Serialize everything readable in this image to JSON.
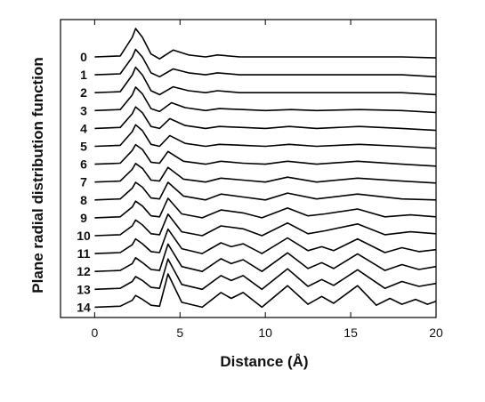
{
  "chart_data": {
    "type": "line",
    "title": "",
    "xlabel": "Distance (Å)",
    "ylabel": "Plane radial distribution function",
    "xlim": [
      -2,
      20
    ],
    "xticks": [
      0,
      5,
      10,
      15,
      20
    ],
    "grid": false,
    "legend": "none",
    "curve_labels": [
      "0",
      "1",
      "2",
      "3",
      "4",
      "5",
      "6",
      "7",
      "8",
      "9",
      "10",
      "11",
      "12",
      "13",
      "14"
    ],
    "line_color": "#000000",
    "series": [
      {
        "label": "0",
        "x": [
          0,
          1.5,
          2.2,
          2.4,
          2.8,
          3.3,
          3.8,
          4.6,
          5.5,
          6.5,
          7.2,
          8.5,
          10,
          12,
          15,
          18,
          20
        ],
        "y": [
          0,
          0.05,
          1.0,
          1.45,
          1.0,
          0.15,
          -0.1,
          0.35,
          0.1,
          0.0,
          0.1,
          0.0,
          0.0,
          0.0,
          0.0,
          0.0,
          -0.05
        ]
      },
      {
        "label": "1",
        "x": [
          0,
          1.5,
          2.2,
          2.4,
          2.8,
          3.3,
          3.8,
          4.6,
          5.5,
          6.5,
          7.2,
          8.5,
          10,
          12,
          15,
          18,
          20
        ],
        "y": [
          0,
          0.05,
          0.9,
          1.3,
          0.9,
          0.1,
          -0.1,
          0.3,
          0.1,
          0.0,
          0.1,
          0.0,
          0.0,
          0.0,
          0.0,
          0.0,
          -0.1
        ]
      },
      {
        "label": "2",
        "x": [
          0,
          1.5,
          2.2,
          2.4,
          2.8,
          3.3,
          3.8,
          4.6,
          5.5,
          6.5,
          7.2,
          8.5,
          10,
          12,
          15,
          18,
          20
        ],
        "y": [
          0,
          0.05,
          0.9,
          1.3,
          0.9,
          0.1,
          -0.1,
          0.3,
          0.1,
          0.0,
          0.1,
          0.0,
          0.0,
          0.0,
          0.0,
          0.0,
          -0.1
        ]
      },
      {
        "label": "3",
        "x": [
          0,
          1.5,
          2.2,
          2.4,
          2.8,
          3.3,
          3.8,
          4.5,
          5.3,
          6.5,
          7.3,
          8.7,
          10,
          11.5,
          13,
          15.5,
          18,
          20
        ],
        "y": [
          0,
          0.05,
          0.8,
          1.2,
          0.85,
          0.1,
          -0.05,
          0.4,
          0.15,
          0.0,
          0.1,
          0.05,
          0.0,
          0.05,
          0.0,
          0.05,
          0.0,
          -0.1
        ]
      },
      {
        "label": "4",
        "x": [
          0,
          1.5,
          2.2,
          2.4,
          2.8,
          3.3,
          3.8,
          4.4,
          5.3,
          6.5,
          7.3,
          8.7,
          10,
          11.4,
          13,
          15.5,
          18,
          20
        ],
        "y": [
          0,
          0.05,
          0.75,
          1.1,
          0.8,
          0.1,
          0.0,
          0.5,
          0.15,
          0.0,
          0.1,
          0.05,
          0.0,
          0.1,
          0.0,
          0.1,
          0.0,
          -0.1
        ]
      },
      {
        "label": "5",
        "x": [
          0,
          1.5,
          2.2,
          2.4,
          2.8,
          3.3,
          3.8,
          4.4,
          5.3,
          6.5,
          7.3,
          8.7,
          10,
          11.4,
          13,
          15.5,
          18,
          20
        ],
        "y": [
          0,
          0.05,
          0.75,
          1.1,
          0.8,
          0.1,
          0.0,
          0.55,
          0.15,
          0.0,
          0.1,
          0.05,
          0.0,
          0.1,
          0.0,
          0.1,
          0.0,
          -0.1
        ]
      },
      {
        "label": "6",
        "x": [
          0,
          1.5,
          2.2,
          2.4,
          2.8,
          3.3,
          3.8,
          4.3,
          5.2,
          6.5,
          7.4,
          8.7,
          10,
          11.3,
          13,
          15.4,
          18,
          20
        ],
        "y": [
          0,
          0.05,
          0.7,
          1.0,
          0.75,
          0.1,
          0.05,
          0.65,
          0.15,
          0.0,
          0.15,
          0.05,
          0.0,
          0.15,
          0.0,
          0.15,
          0.0,
          -0.1
        ]
      },
      {
        "label": "7",
        "x": [
          0,
          1.5,
          2.2,
          2.4,
          2.8,
          3.3,
          3.8,
          4.3,
          5.2,
          6.5,
          7.4,
          8.7,
          10,
          11.3,
          13,
          15.4,
          18,
          20
        ],
        "y": [
          0,
          0.05,
          0.65,
          0.95,
          0.7,
          0.1,
          0.05,
          0.75,
          0.15,
          0.0,
          0.2,
          0.1,
          0.0,
          0.25,
          0.0,
          0.2,
          0.05,
          -0.05
        ]
      },
      {
        "label": "8",
        "x": [
          0,
          1.5,
          2.2,
          2.4,
          2.8,
          3.3,
          3.8,
          4.3,
          5.2,
          6.5,
          7.4,
          8.7,
          10,
          11.3,
          13,
          15.4,
          18,
          20
        ],
        "y": [
          0,
          0.05,
          0.6,
          0.9,
          0.65,
          0.1,
          0.05,
          0.9,
          0.2,
          0.0,
          0.3,
          0.15,
          0.0,
          0.35,
          0.05,
          0.3,
          0.05,
          0.0
        ]
      },
      {
        "label": "9",
        "x": [
          0,
          1.5,
          2.2,
          2.4,
          2.8,
          3.3,
          3.8,
          4.3,
          5.1,
          6.3,
          7.4,
          8.7,
          9.8,
          11.3,
          12.5,
          13.5,
          15.4,
          17,
          18.5,
          20
        ],
        "y": [
          0,
          0.05,
          0.55,
          0.85,
          0.6,
          0.1,
          0.05,
          1.0,
          0.2,
          0.0,
          0.4,
          0.25,
          0.0,
          0.5,
          0.1,
          0.2,
          0.45,
          0.05,
          0.15,
          0.05
        ]
      },
      {
        "label": "10",
        "x": [
          0,
          1.5,
          2.2,
          2.4,
          2.8,
          3.3,
          3.8,
          4.3,
          5.1,
          6.3,
          7.4,
          8.7,
          9.8,
          11.3,
          12.5,
          13.5,
          15.4,
          17,
          18.5,
          20
        ],
        "y": [
          0,
          0.05,
          0.5,
          0.8,
          0.55,
          0.1,
          0.05,
          1.1,
          0.2,
          0.0,
          0.5,
          0.35,
          0.0,
          0.65,
          0.1,
          0.25,
          0.6,
          0.05,
          0.2,
          0.1
        ]
      },
      {
        "label": "11",
        "x": [
          0,
          1.5,
          2.2,
          2.4,
          2.8,
          3.3,
          3.8,
          4.3,
          5.1,
          6.3,
          7.4,
          8.0,
          8.7,
          9.8,
          11.3,
          12.5,
          13.3,
          14,
          15.4,
          17,
          18,
          19,
          20
        ],
        "y": [
          0,
          0.05,
          0.45,
          0.75,
          0.5,
          0.1,
          0.05,
          1.25,
          0.25,
          0.0,
          0.55,
          0.35,
          0.5,
          0.0,
          0.8,
          0.15,
          0.35,
          0.15,
          0.75,
          0.05,
          0.3,
          0.1,
          0.2
        ]
      },
      {
        "label": "12",
        "x": [
          0,
          1.5,
          2.2,
          2.4,
          2.8,
          3.3,
          3.8,
          4.3,
          5.1,
          6.3,
          7.4,
          8.0,
          8.7,
          9.8,
          11.3,
          12.5,
          13.3,
          14,
          15.4,
          17,
          18,
          19,
          20
        ],
        "y": [
          0,
          0.05,
          0.4,
          0.7,
          0.45,
          0.1,
          0.05,
          1.4,
          0.25,
          0.0,
          0.65,
          0.4,
          0.6,
          0.0,
          0.95,
          0.15,
          0.45,
          0.15,
          0.9,
          0.05,
          0.35,
          0.1,
          0.25
        ]
      },
      {
        "label": "13",
        "x": [
          0,
          1.5,
          2.2,
          2.4,
          2.8,
          3.3,
          3.8,
          4.3,
          5.1,
          6.3,
          7.4,
          8.0,
          8.7,
          9.8,
          11.3,
          12.5,
          13.3,
          14,
          15.4,
          17,
          18,
          19,
          20
        ],
        "y": [
          0,
          0.05,
          0.4,
          0.65,
          0.45,
          0.1,
          0.05,
          1.55,
          0.25,
          0.0,
          0.7,
          0.45,
          0.7,
          0.0,
          1.05,
          0.15,
          0.5,
          0.2,
          1.0,
          0.05,
          0.4,
          0.15,
          0.3
        ]
      },
      {
        "label": "14",
        "x": [
          0,
          1.5,
          2.2,
          2.4,
          2.8,
          3.3,
          3.8,
          4.3,
          5.1,
          6.3,
          7.4,
          8.0,
          8.7,
          9.8,
          11.3,
          12.5,
          13.3,
          14,
          15.4,
          16.5,
          17.3,
          18,
          18.8,
          19.5,
          20
        ],
        "y": [
          0,
          0.05,
          0.35,
          0.6,
          0.4,
          0.1,
          0.05,
          1.7,
          0.25,
          0.0,
          0.75,
          0.45,
          0.75,
          0.0,
          1.1,
          0.15,
          0.55,
          0.2,
          1.1,
          0.1,
          0.45,
          0.15,
          0.4,
          0.15,
          0.3
        ]
      }
    ]
  }
}
